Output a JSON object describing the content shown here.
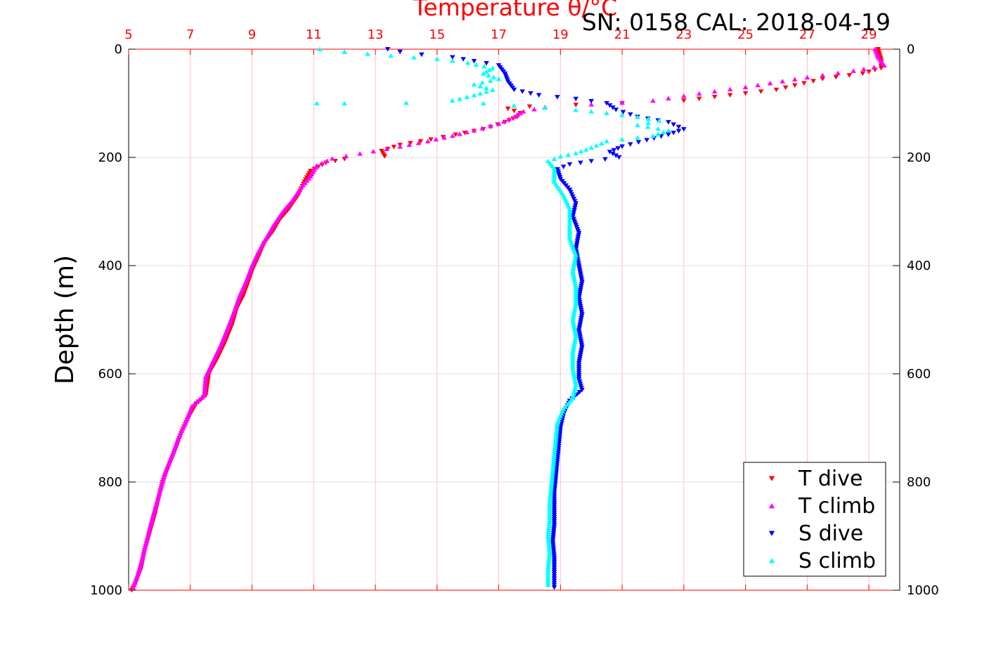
{
  "chart_data": {
    "type": "scatter",
    "title": "Temperature θ/°C",
    "subtitle": "SN: 0158  CAL: 2018-04-19",
    "ylabel": "Depth (m)",
    "xlabel_top": "Temperature θ/°C",
    "xlim": [
      5,
      30
    ],
    "ylim": [
      0,
      1000
    ],
    "y_reversed": true,
    "grid": true,
    "legend_position": "bottom-right",
    "x_ticks": [
      "5",
      "7",
      "9",
      "11",
      "13",
      "15",
      "17",
      "19",
      "21",
      "23",
      "25",
      "27",
      "29"
    ],
    "x_tick_values": [
      5,
      7,
      9,
      11,
      13,
      15,
      17,
      19,
      21,
      23,
      25,
      27,
      29
    ],
    "y_ticks": [
      "0",
      "200",
      "400",
      "600",
      "800",
      "1000"
    ],
    "y_tick_values": [
      0,
      200,
      400,
      600,
      800,
      1000
    ],
    "colors": {
      "title": "#ff0000",
      "top_axis": "#ff0000",
      "grid_vertical": "#ffc0c0",
      "grid_horizontal": "#dcdcdc",
      "t_dive": "#ff0000",
      "t_climb": "#ff00ff",
      "s_dive": "#0000ff",
      "s_climb": "#00ffff"
    },
    "series": [
      {
        "name": "T dive",
        "marker": "triangle-down",
        "color": "#ff0000",
        "points": [
          [
            29.3,
            0
          ],
          [
            29.4,
            20
          ],
          [
            29.4,
            35
          ],
          [
            28.8,
            45
          ],
          [
            27.5,
            55
          ],
          [
            26,
            75
          ],
          [
            24.5,
            85
          ],
          [
            23,
            95
          ],
          [
            21,
            100
          ],
          [
            19.5,
            103
          ],
          [
            18,
            106
          ],
          [
            17.3,
            110
          ],
          [
            17.7,
            118
          ],
          [
            17.6,
            125
          ],
          [
            17.2,
            135
          ],
          [
            16.5,
            148
          ],
          [
            15.6,
            158
          ],
          [
            14.8,
            167
          ],
          [
            13.8,
            177
          ],
          [
            13.2,
            188
          ],
          [
            13.3,
            198
          ],
          [
            12,
            203
          ],
          [
            11.4,
            210
          ],
          [
            10.9,
            225
          ],
          [
            10.7,
            245
          ],
          [
            10.5,
            270
          ],
          [
            10.2,
            295
          ],
          [
            9.9,
            315
          ],
          [
            9.7,
            335
          ],
          [
            9.4,
            358
          ],
          [
            9.2,
            385
          ],
          [
            9.0,
            410
          ],
          [
            8.85,
            435
          ],
          [
            8.7,
            458
          ],
          [
            8.5,
            480
          ],
          [
            8.35,
            510
          ],
          [
            8.1,
            545
          ],
          [
            7.85,
            575
          ],
          [
            7.6,
            600
          ],
          [
            7.5,
            640
          ],
          [
            7.2,
            655
          ],
          [
            6.9,
            685
          ],
          [
            6.7,
            710
          ],
          [
            6.55,
            735
          ],
          [
            6.3,
            770
          ],
          [
            6.1,
            800
          ],
          [
            5.95,
            835
          ],
          [
            5.85,
            860
          ],
          [
            5.7,
            890
          ],
          [
            5.5,
            930
          ],
          [
            5.4,
            960
          ],
          [
            5.2,
            990
          ],
          [
            5.1,
            1000
          ]
        ]
      },
      {
        "name": "T climb",
        "marker": "triangle-up",
        "color": "#ff00ff",
        "points": [
          [
            29.2,
            0
          ],
          [
            29.3,
            15
          ],
          [
            29.5,
            30
          ],
          [
            28.5,
            40
          ],
          [
            27,
            52
          ],
          [
            25,
            70
          ],
          [
            23.5,
            82
          ],
          [
            22,
            95
          ],
          [
            20,
            102
          ],
          [
            18.5,
            107
          ],
          [
            17.8,
            115
          ],
          [
            17.5,
            125
          ],
          [
            17,
            138
          ],
          [
            16.2,
            150
          ],
          [
            15.5,
            160
          ],
          [
            14.7,
            170
          ],
          [
            13.8,
            180
          ],
          [
            12.5,
            193
          ],
          [
            11.6,
            202
          ],
          [
            11.1,
            215
          ],
          [
            10.9,
            235
          ],
          [
            10.6,
            255
          ],
          [
            10.3,
            280
          ],
          [
            10.0,
            300
          ],
          [
            9.7,
            325
          ],
          [
            9.45,
            350
          ],
          [
            9.2,
            375
          ],
          [
            9.0,
            400
          ],
          [
            8.8,
            430
          ],
          [
            8.6,
            455
          ],
          [
            8.45,
            480
          ],
          [
            8.25,
            510
          ],
          [
            8.0,
            545
          ],
          [
            7.75,
            575
          ],
          [
            7.5,
            605
          ],
          [
            7.45,
            640
          ],
          [
            7.05,
            660
          ],
          [
            6.85,
            690
          ],
          [
            6.6,
            720
          ],
          [
            6.45,
            745
          ],
          [
            6.2,
            780
          ],
          [
            6.05,
            810
          ],
          [
            5.9,
            840
          ],
          [
            5.75,
            870
          ],
          [
            5.6,
            905
          ],
          [
            5.45,
            940
          ],
          [
            5.3,
            970
          ],
          [
            5.15,
            995
          ]
        ]
      },
      {
        "name": "S dive",
        "marker": "triangle-down",
        "color": "#0000ff",
        "points": [
          [
            13.4,
            0
          ],
          [
            13.8,
            5
          ],
          [
            14.5,
            10
          ],
          [
            15.5,
            15
          ],
          [
            16.2,
            22
          ],
          [
            17.0,
            30
          ],
          [
            17.2,
            45
          ],
          [
            17.3,
            60
          ],
          [
            17.5,
            75
          ],
          [
            18.3,
            85
          ],
          [
            19.5,
            92
          ],
          [
            20.5,
            100
          ],
          [
            20.8,
            112
          ],
          [
            21.5,
            125
          ],
          [
            22.5,
            135
          ],
          [
            23.0,
            148
          ],
          [
            22.5,
            158
          ],
          [
            21.8,
            168
          ],
          [
            21.0,
            180
          ],
          [
            20.6,
            190
          ],
          [
            20.9,
            200
          ],
          [
            20.0,
            207
          ],
          [
            19.3,
            213
          ],
          [
            18.9,
            222
          ],
          [
            19.0,
            240
          ],
          [
            19.3,
            260
          ],
          [
            19.5,
            285
          ],
          [
            19.4,
            310
          ],
          [
            19.6,
            340
          ],
          [
            19.5,
            370
          ],
          [
            19.6,
            400
          ],
          [
            19.7,
            430
          ],
          [
            19.6,
            460
          ],
          [
            19.7,
            490
          ],
          [
            19.6,
            520
          ],
          [
            19.7,
            550
          ],
          [
            19.6,
            580
          ],
          [
            19.6,
            610
          ],
          [
            19.7,
            630
          ],
          [
            19.3,
            650
          ],
          [
            19.1,
            675
          ],
          [
            19.0,
            700
          ],
          [
            18.95,
            730
          ],
          [
            18.9,
            760
          ],
          [
            18.85,
            790
          ],
          [
            18.8,
            820
          ],
          [
            18.8,
            850
          ],
          [
            18.8,
            880
          ],
          [
            18.75,
            910
          ],
          [
            18.8,
            940
          ],
          [
            18.8,
            970
          ],
          [
            18.8,
            995
          ]
        ]
      },
      {
        "name": "S climb",
        "marker": "triangle-up",
        "color": "#00ffff",
        "points": [
          [
            11.2,
            0
          ],
          [
            12.0,
            5
          ],
          [
            13.5,
            12
          ],
          [
            15.0,
            18
          ],
          [
            16.0,
            25
          ],
          [
            16.8,
            35
          ],
          [
            16.5,
            45
          ],
          [
            17.0,
            55
          ],
          [
            16.2,
            65
          ],
          [
            16.8,
            75
          ],
          [
            16.2,
            85
          ],
          [
            15.5,
            95
          ],
          [
            14.0,
            99
          ],
          [
            12.0,
            100
          ],
          [
            11.1,
            100
          ],
          [
            16.5,
            100
          ],
          [
            17.5,
            104
          ],
          [
            18.5,
            108
          ],
          [
            19.5,
            112
          ],
          [
            20.5,
            118
          ],
          [
            21.5,
            125
          ],
          [
            22.2,
            132
          ],
          [
            21.5,
            140
          ],
          [
            22.5,
            150
          ],
          [
            22.0,
            160
          ],
          [
            20.5,
            170
          ],
          [
            20.0,
            182
          ],
          [
            19.5,
            192
          ],
          [
            19.0,
            198
          ],
          [
            18.6,
            207
          ],
          [
            18.8,
            220
          ],
          [
            18.8,
            245
          ],
          [
            19.1,
            270
          ],
          [
            19.3,
            295
          ],
          [
            19.3,
            320
          ],
          [
            19.3,
            350
          ],
          [
            19.5,
            380
          ],
          [
            19.4,
            410
          ],
          [
            19.5,
            440
          ],
          [
            19.5,
            470
          ],
          [
            19.4,
            500
          ],
          [
            19.5,
            530
          ],
          [
            19.4,
            560
          ],
          [
            19.4,
            590
          ],
          [
            19.5,
            620
          ],
          [
            19.4,
            645
          ],
          [
            19.1,
            665
          ],
          [
            18.9,
            690
          ],
          [
            18.85,
            720
          ],
          [
            18.8,
            750
          ],
          [
            18.75,
            780
          ],
          [
            18.7,
            810
          ],
          [
            18.65,
            840
          ],
          [
            18.65,
            870
          ],
          [
            18.6,
            900
          ],
          [
            18.65,
            930
          ],
          [
            18.6,
            960
          ],
          [
            18.6,
            990
          ]
        ]
      }
    ]
  }
}
